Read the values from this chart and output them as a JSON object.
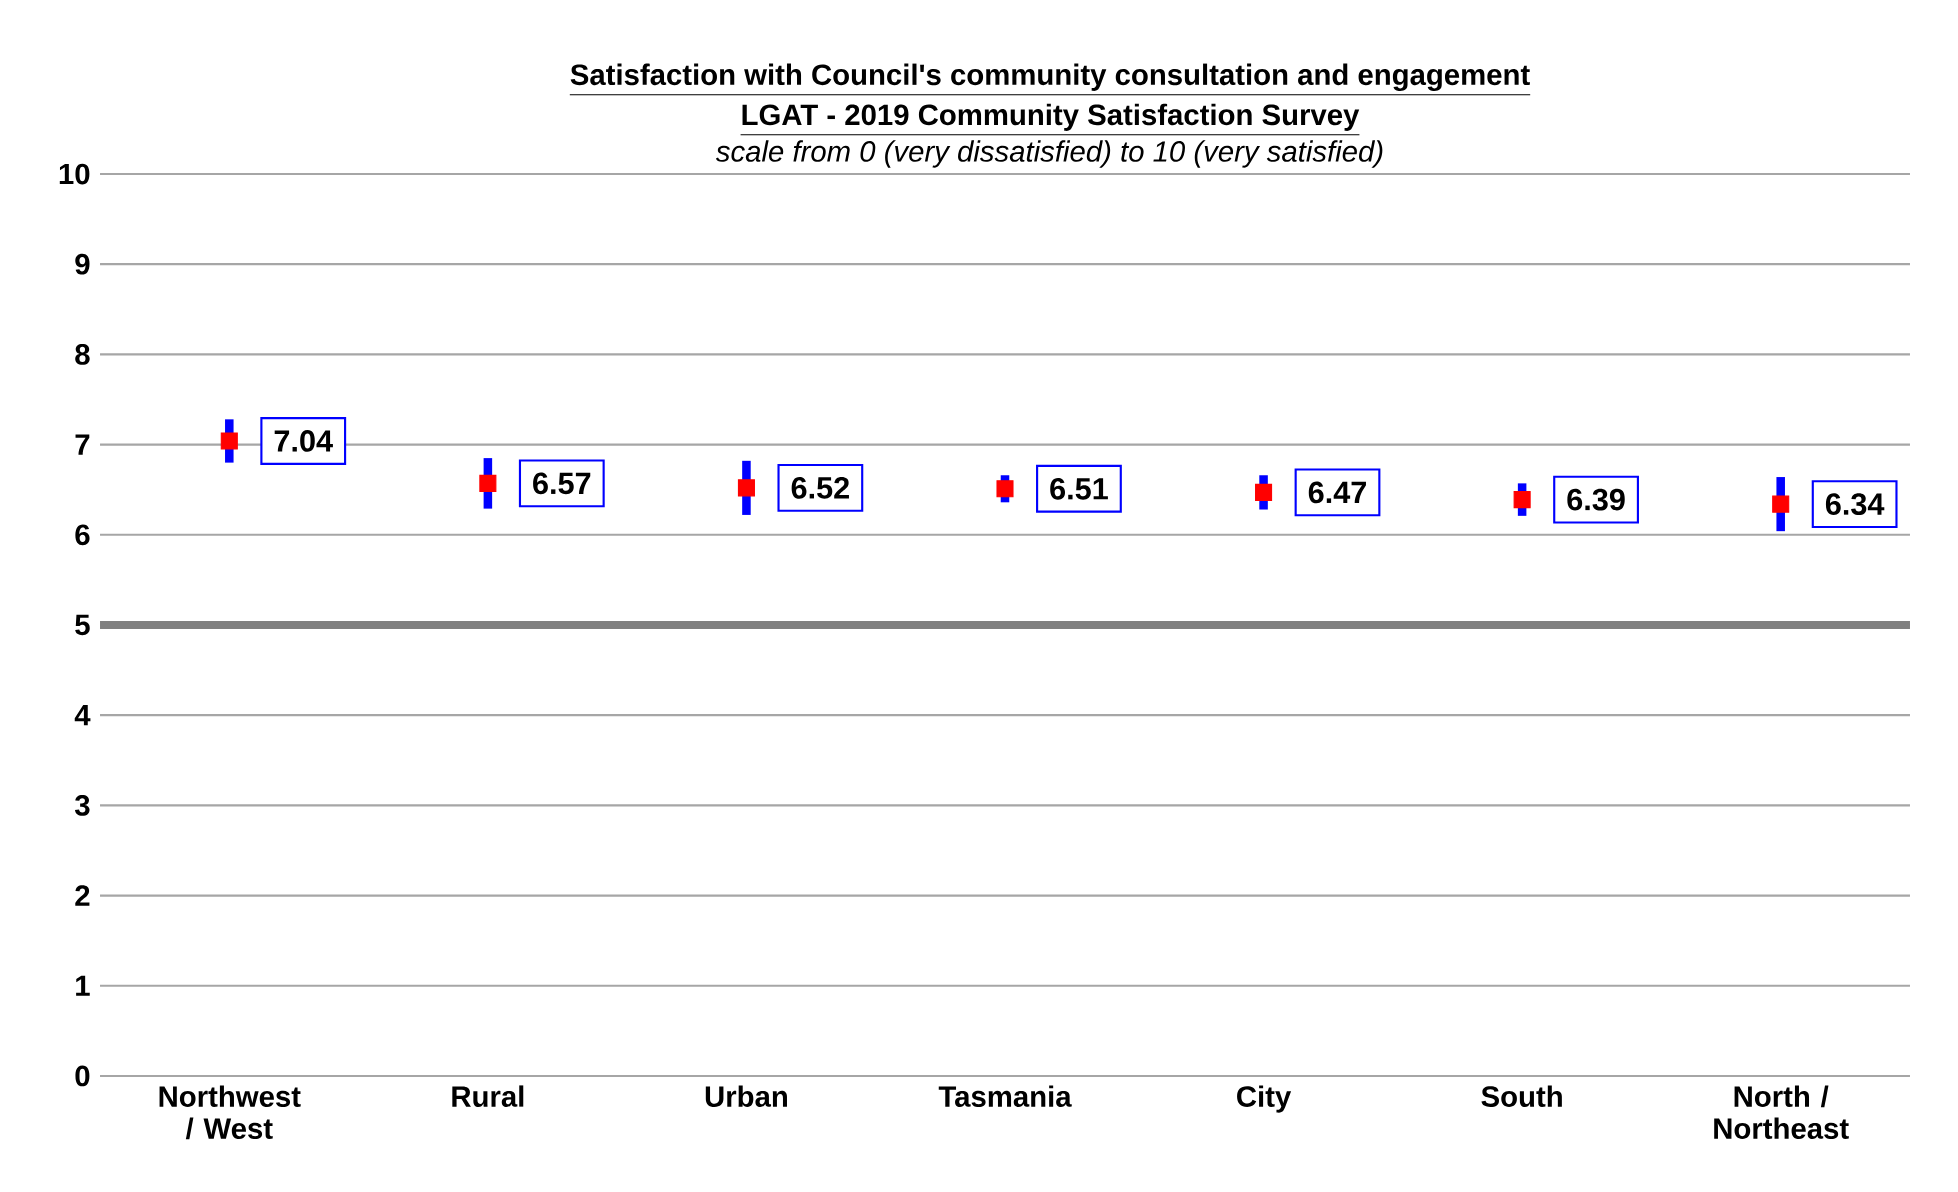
{
  "chart_data": {
    "type": "scatter",
    "title": "Satisfaction  with Council's community consultation and engagement",
    "subtitle": "LGAT -  2019 Community Satisfaction  Survey",
    "annotations": [
      "scale from 0 (very dissatisfied) to 10 (very satisfied)"
    ],
    "categories": [
      "Northwest / West",
      "Rural",
      "Urban",
      "Tasmania",
      "City",
      "South",
      "North / Northeast"
    ],
    "values": [
      7.04,
      6.57,
      6.52,
      6.51,
      6.47,
      6.39,
      6.34
    ],
    "errors": [
      0.24,
      0.28,
      0.3,
      0.15,
      0.19,
      0.18,
      0.3
    ],
    "color": "#ff0000",
    "marker": "square",
    "data_labels": true,
    "ylim": [
      0,
      10
    ],
    "yticks": [
      0,
      1,
      2,
      3,
      4,
      5,
      6,
      7,
      8,
      9,
      10
    ],
    "grid": "y",
    "ref_lines": [
      {
        "axis": "y",
        "value": 5,
        "color": "#808080"
      }
    ]
  }
}
